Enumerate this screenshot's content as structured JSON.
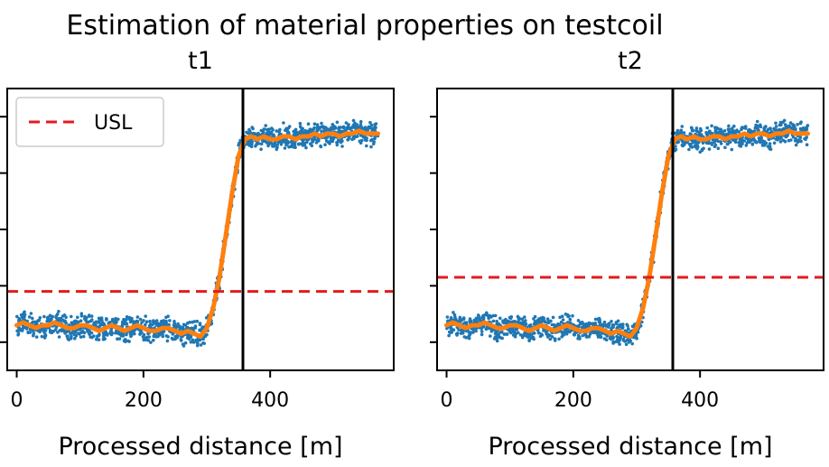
{
  "figure": {
    "title": "Estimation of material properties on testcoil"
  },
  "colors": {
    "scatter": "#1f77b4",
    "smooth": "#ff7f0e",
    "usl": "#e41a1c",
    "vline": "#000000"
  },
  "chart_data": [
    {
      "type": "scatter",
      "title": "t1",
      "xlabel": "Processed distance [m]",
      "ylabel": "",
      "xlim": [
        -15,
        595
      ],
      "ylim": [
        0,
        1
      ],
      "xticks": [
        0,
        200,
        400
      ],
      "xtick_labels": [
        "0",
        "200",
        "400"
      ],
      "ytick_count": 5,
      "vertical_line_x": 357,
      "usl": 0.28,
      "legend": {
        "entries": [
          "USL"
        ],
        "placement": "upper-left"
      },
      "series": [
        {
          "kind": "scatter",
          "x": [
            0,
            10,
            20,
            30,
            40,
            50,
            60,
            70,
            80,
            90,
            100,
            110,
            120,
            130,
            140,
            150,
            160,
            170,
            180,
            190,
            200,
            210,
            220,
            230,
            240,
            250,
            260,
            270,
            280,
            290,
            300,
            310,
            320,
            330,
            340,
            350,
            360,
            370,
            380,
            390,
            400,
            410,
            420,
            430,
            440,
            450,
            460,
            470,
            480,
            490,
            500,
            510,
            520,
            530,
            540,
            550,
            560,
            570
          ],
          "y": [
            0.16,
            0.17,
            0.16,
            0.15,
            0.16,
            0.16,
            0.17,
            0.16,
            0.15,
            0.15,
            0.16,
            0.16,
            0.15,
            0.14,
            0.15,
            0.16,
            0.15,
            0.14,
            0.15,
            0.16,
            0.15,
            0.14,
            0.14,
            0.15,
            0.15,
            0.14,
            0.13,
            0.14,
            0.13,
            0.12,
            0.15,
            0.22,
            0.33,
            0.48,
            0.63,
            0.76,
            0.82,
            0.83,
            0.82,
            0.83,
            0.82,
            0.82,
            0.83,
            0.83,
            0.82,
            0.83,
            0.83,
            0.84,
            0.83,
            0.84,
            0.84,
            0.83,
            0.84,
            0.84,
            0.85,
            0.84,
            0.84,
            0.84
          ],
          "spread": 0.05
        },
        {
          "kind": "smooth",
          "x": [
            0,
            10,
            20,
            30,
            40,
            50,
            60,
            70,
            80,
            90,
            100,
            110,
            120,
            130,
            140,
            150,
            160,
            170,
            180,
            190,
            200,
            210,
            220,
            230,
            240,
            250,
            260,
            270,
            280,
            290,
            300,
            310,
            320,
            330,
            340,
            350,
            360,
            370,
            380,
            390,
            400,
            410,
            420,
            430,
            440,
            450,
            460,
            470,
            480,
            490,
            500,
            510,
            520,
            530,
            540,
            550,
            560,
            570
          ],
          "y": [
            0.16,
            0.17,
            0.16,
            0.15,
            0.16,
            0.16,
            0.17,
            0.16,
            0.15,
            0.15,
            0.16,
            0.16,
            0.15,
            0.14,
            0.15,
            0.16,
            0.15,
            0.14,
            0.15,
            0.16,
            0.15,
            0.14,
            0.14,
            0.15,
            0.15,
            0.14,
            0.13,
            0.14,
            0.13,
            0.12,
            0.15,
            0.22,
            0.33,
            0.48,
            0.63,
            0.76,
            0.82,
            0.83,
            0.82,
            0.83,
            0.82,
            0.82,
            0.83,
            0.83,
            0.82,
            0.83,
            0.83,
            0.84,
            0.83,
            0.84,
            0.84,
            0.83,
            0.84,
            0.84,
            0.85,
            0.84,
            0.84,
            0.84
          ]
        }
      ]
    },
    {
      "type": "scatter",
      "title": "t2",
      "xlabel": "Processed distance [m]",
      "ylabel": "",
      "xlim": [
        -15,
        595
      ],
      "ylim": [
        0,
        1
      ],
      "xticks": [
        0,
        200,
        400
      ],
      "xtick_labels": [
        "0",
        "200",
        "400"
      ],
      "ytick_count": 5,
      "vertical_line_x": 357,
      "usl": 0.33,
      "legend": null,
      "series": [
        {
          "kind": "scatter",
          "x": [
            0,
            10,
            20,
            30,
            40,
            50,
            60,
            70,
            80,
            90,
            100,
            110,
            120,
            130,
            140,
            150,
            160,
            170,
            180,
            190,
            200,
            210,
            220,
            230,
            240,
            250,
            260,
            270,
            280,
            290,
            300,
            310,
            320,
            330,
            340,
            350,
            360,
            370,
            380,
            390,
            400,
            410,
            420,
            430,
            440,
            450,
            460,
            470,
            480,
            490,
            500,
            510,
            520,
            530,
            540,
            550,
            560,
            570
          ],
          "y": [
            0.16,
            0.17,
            0.16,
            0.15,
            0.16,
            0.16,
            0.17,
            0.16,
            0.15,
            0.15,
            0.16,
            0.16,
            0.15,
            0.14,
            0.15,
            0.16,
            0.15,
            0.14,
            0.15,
            0.16,
            0.15,
            0.14,
            0.14,
            0.15,
            0.15,
            0.14,
            0.13,
            0.14,
            0.13,
            0.12,
            0.15,
            0.22,
            0.33,
            0.48,
            0.63,
            0.76,
            0.82,
            0.83,
            0.82,
            0.83,
            0.82,
            0.82,
            0.83,
            0.83,
            0.82,
            0.83,
            0.83,
            0.84,
            0.83,
            0.84,
            0.84,
            0.83,
            0.84,
            0.84,
            0.85,
            0.84,
            0.84,
            0.84
          ],
          "spread": 0.05
        },
        {
          "kind": "smooth",
          "x": [
            0,
            10,
            20,
            30,
            40,
            50,
            60,
            70,
            80,
            90,
            100,
            110,
            120,
            130,
            140,
            150,
            160,
            170,
            180,
            190,
            200,
            210,
            220,
            230,
            240,
            250,
            260,
            270,
            280,
            290,
            300,
            310,
            320,
            330,
            340,
            350,
            360,
            370,
            380,
            390,
            400,
            410,
            420,
            430,
            440,
            450,
            460,
            470,
            480,
            490,
            500,
            510,
            520,
            530,
            540,
            550,
            560,
            570
          ],
          "y": [
            0.16,
            0.17,
            0.16,
            0.15,
            0.16,
            0.16,
            0.17,
            0.16,
            0.15,
            0.15,
            0.16,
            0.16,
            0.15,
            0.14,
            0.15,
            0.16,
            0.15,
            0.14,
            0.15,
            0.16,
            0.15,
            0.14,
            0.14,
            0.15,
            0.15,
            0.14,
            0.13,
            0.14,
            0.13,
            0.12,
            0.15,
            0.22,
            0.33,
            0.48,
            0.63,
            0.76,
            0.82,
            0.83,
            0.82,
            0.83,
            0.82,
            0.82,
            0.83,
            0.83,
            0.82,
            0.83,
            0.83,
            0.84,
            0.83,
            0.84,
            0.84,
            0.83,
            0.84,
            0.84,
            0.85,
            0.84,
            0.84,
            0.84
          ]
        }
      ]
    }
  ]
}
